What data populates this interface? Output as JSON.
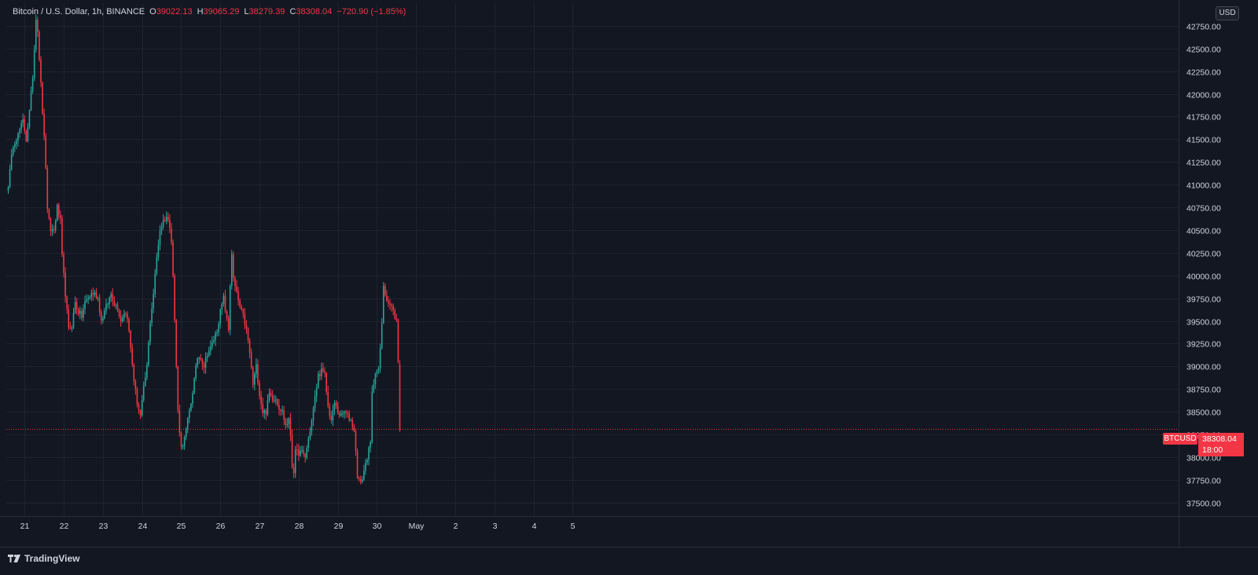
{
  "legend": {
    "symbol": "Bitcoin / U.S. Dollar, 1h, BINANCE",
    "o_key": "O",
    "o_val": "39022.13",
    "h_key": "H",
    "h_val": "39065.29",
    "l_key": "L",
    "l_val": "38279.39",
    "c_key": "C",
    "c_val": "38308.04",
    "change": "−720.90 (−1.85%)"
  },
  "currency": "USD",
  "last_price": {
    "symbol": "BTCUSD",
    "price": "38308.04",
    "countdown": "18:00"
  },
  "branding": "TradingView",
  "colors": {
    "background": "#131722",
    "up": "#26a69a",
    "down": "#f23645",
    "grid": "#1f2330",
    "text": "#d1d4dc"
  },
  "chart_data": {
    "type": "candlestick",
    "timeframe": "1h",
    "ylim": [
      37350,
      43000
    ],
    "y_ticks": [
      "37500.00",
      "37750.00",
      "38000.00",
      "38250.00",
      "38500.00",
      "38750.00",
      "39000.00",
      "39250.00",
      "39500.00",
      "39750.00",
      "40000.00",
      "40250.00",
      "40500.00",
      "40750.00",
      "41000.00",
      "41250.00",
      "41500.00",
      "41750.00",
      "42000.00",
      "42250.00",
      "42500.00",
      "42750.00"
    ],
    "x_ticks": [
      "21",
      "22",
      "23",
      "24",
      "25",
      "26",
      "27",
      "28",
      "29",
      "30",
      "May",
      "2",
      "3",
      "4",
      "5"
    ],
    "last_close": 38308.04,
    "price_path": [
      [
        0,
        41000
      ],
      [
        3,
        41450
      ],
      [
        6,
        41550
      ],
      [
        9,
        41700
      ],
      [
        11,
        41500
      ],
      [
        13,
        41800
      ],
      [
        15,
        42200
      ],
      [
        16,
        42500
      ],
      [
        17,
        42850
      ],
      [
        18,
        42700
      ],
      [
        19,
        42400
      ],
      [
        20,
        42100
      ],
      [
        21,
        41800
      ],
      [
        22,
        41500
      ],
      [
        23,
        41200
      ],
      [
        24,
        40700
      ],
      [
        26,
        40500
      ],
      [
        28,
        40500
      ],
      [
        30,
        40750
      ],
      [
        32,
        40600
      ],
      [
        33,
        40200
      ],
      [
        35,
        39800
      ],
      [
        37,
        39400
      ],
      [
        39,
        39450
      ],
      [
        41,
        39700
      ],
      [
        43,
        39600
      ],
      [
        45,
        39550
      ],
      [
        47,
        39700
      ],
      [
        49,
        39750
      ],
      [
        51,
        39800
      ],
      [
        53,
        39800
      ],
      [
        55,
        39750
      ],
      [
        57,
        39500
      ],
      [
        59,
        39600
      ],
      [
        61,
        39700
      ],
      [
        63,
        39800
      ],
      [
        65,
        39700
      ],
      [
        67,
        39650
      ],
      [
        69,
        39500
      ],
      [
        71,
        39600
      ],
      [
        73,
        39550
      ],
      [
        75,
        39200
      ],
      [
        77,
        38850
      ],
      [
        79,
        38600
      ],
      [
        81,
        38450
      ],
      [
        83,
        38750
      ],
      [
        85,
        39000
      ],
      [
        87,
        39500
      ],
      [
        89,
        39800
      ],
      [
        91,
        40200
      ],
      [
        93,
        40500
      ],
      [
        95,
        40600
      ],
      [
        97,
        40650
      ],
      [
        99,
        40550
      ],
      [
        100,
        40400
      ],
      [
        101,
        40000
      ],
      [
        102,
        39500
      ],
      [
        103,
        39000
      ],
      [
        104,
        38500
      ],
      [
        106,
        38100
      ],
      [
        108,
        38200
      ],
      [
        110,
        38400
      ],
      [
        112,
        38600
      ],
      [
        114,
        38850
      ],
      [
        116,
        39100
      ],
      [
        118,
        39100
      ],
      [
        120,
        39000
      ],
      [
        122,
        39150
      ],
      [
        124,
        39200
      ],
      [
        126,
        39300
      ],
      [
        128,
        39400
      ],
      [
        130,
        39600
      ],
      [
        132,
        39750
      ],
      [
        134,
        39500
      ],
      [
        135,
        39400
      ],
      [
        136,
        39900
      ],
      [
        137,
        40250
      ],
      [
        138,
        39950
      ],
      [
        140,
        39800
      ],
      [
        142,
        39650
      ],
      [
        144,
        39550
      ],
      [
        146,
        39400
      ],
      [
        148,
        39150
      ],
      [
        150,
        38800
      ],
      [
        152,
        39000
      ],
      [
        154,
        38700
      ],
      [
        156,
        38500
      ],
      [
        158,
        38500
      ],
      [
        160,
        38700
      ],
      [
        162,
        38650
      ],
      [
        164,
        38650
      ],
      [
        166,
        38550
      ],
      [
        168,
        38500
      ],
      [
        170,
        38350
      ],
      [
        172,
        38400
      ],
      [
        173,
        38250
      ],
      [
        174,
        37900
      ],
      [
        175,
        37850
      ],
      [
        176,
        38050
      ],
      [
        178,
        38050
      ],
      [
        180,
        38050
      ],
      [
        182,
        38000
      ],
      [
        184,
        38200
      ],
      [
        186,
        38400
      ],
      [
        188,
        38650
      ],
      [
        190,
        38900
      ],
      [
        192,
        38950
      ],
      [
        194,
        38900
      ],
      [
        196,
        38550
      ],
      [
        198,
        38400
      ],
      [
        200,
        38600
      ],
      [
        202,
        38500
      ],
      [
        204,
        38450
      ],
      [
        206,
        38500
      ],
      [
        208,
        38450
      ],
      [
        210,
        38400
      ],
      [
        212,
        38300
      ],
      [
        213,
        38050
      ],
      [
        214,
        37800
      ],
      [
        216,
        37700
      ],
      [
        218,
        37850
      ],
      [
        220,
        38000
      ],
      [
        222,
        38150
      ],
      [
        223,
        38700
      ],
      [
        225,
        38950
      ],
      [
        227,
        38950
      ],
      [
        228,
        39200
      ],
      [
        229,
        39450
      ],
      [
        230,
        39900
      ],
      [
        231,
        39800
      ],
      [
        233,
        39700
      ],
      [
        235,
        39650
      ],
      [
        237,
        39550
      ],
      [
        238,
        39500
      ],
      [
        239,
        39050
      ],
      [
        240,
        38308
      ]
    ]
  }
}
